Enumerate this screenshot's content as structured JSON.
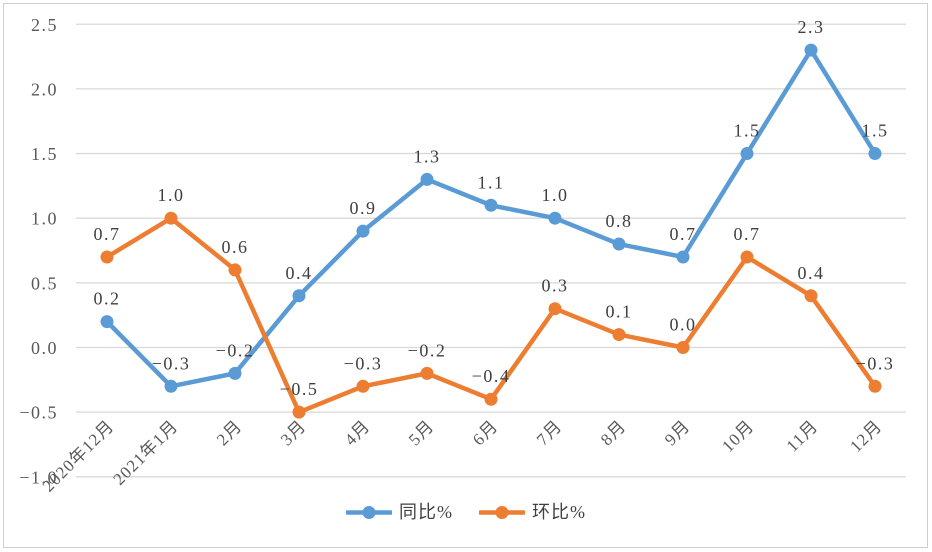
{
  "chart_data": {
    "type": "line",
    "title": "",
    "xlabel": "",
    "ylabel": "",
    "categories": [
      "2020年12月",
      "2021年1月",
      "2月",
      "3月",
      "4月",
      "5月",
      "6月",
      "7月",
      "8月",
      "9月",
      "10月",
      "11月",
      "12月"
    ],
    "series": [
      {
        "name": "同比%",
        "color": "#5B9BD5",
        "values": [
          0.2,
          -0.3,
          -0.2,
          0.4,
          0.9,
          1.3,
          1.1,
          1.0,
          0.8,
          0.7,
          1.5,
          2.3,
          1.5
        ]
      },
      {
        "name": "环比%",
        "color": "#ED7D31",
        "values": [
          0.7,
          1.0,
          0.6,
          -0.5,
          -0.3,
          -0.2,
          -0.4,
          0.3,
          0.1,
          0.0,
          0.7,
          0.4,
          -0.3
        ]
      }
    ],
    "y_ticks": [
      2.5,
      2.0,
      1.5,
      1.0,
      0.5,
      0.0,
      -0.5,
      -1.0
    ],
    "ylim": [
      -1.0,
      2.5
    ],
    "grid": true,
    "data_labels": true,
    "legend_position": "bottom",
    "colors": {
      "gridline": "#d9d9d9",
      "axis_text": "#595959",
      "data_label_text": "#3f3f3f",
      "frame_border": "#cfcfcf",
      "background": "#ffffff"
    }
  }
}
